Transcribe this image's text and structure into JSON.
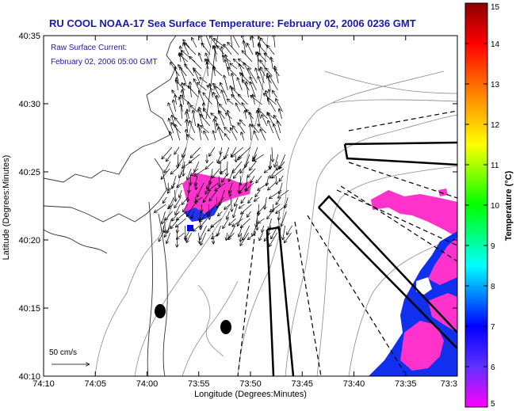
{
  "title": "RU COOL  NOAA-17  Sea Surface Temperature:  February 02, 2006 0236 GMT",
  "current_label": {
    "line1": "Raw Surface Current:",
    "line2": "February 02, 2006 05:00 GMT"
  },
  "scale_label": "50 cm/s",
  "xaxis": {
    "label": "Longitude (Degrees:Minutes)",
    "ticks": [
      "74:10",
      "74:05",
      "74:00",
      "73:55",
      "73:50",
      "73:45",
      "73:40",
      "73:35",
      "73:3"
    ]
  },
  "yaxis": {
    "label": "Latitude (Degrees:Minutes)",
    "ticks": [
      "40:35",
      "40:30",
      "40:25",
      "40:20",
      "40:15",
      "40:10"
    ]
  },
  "colorbar": {
    "label": "Temperature (°C)",
    "ticks": [
      "15",
      "14",
      "13",
      "12",
      "11",
      "10",
      "9",
      "8",
      "7",
      "6",
      "5"
    ],
    "stops": [
      "#ff00ff",
      "#0000ff",
      "#00ffff",
      "#00ff00",
      "#ffff00",
      "#ff8000",
      "#ff0000",
      "#8b0000"
    ]
  }
}
